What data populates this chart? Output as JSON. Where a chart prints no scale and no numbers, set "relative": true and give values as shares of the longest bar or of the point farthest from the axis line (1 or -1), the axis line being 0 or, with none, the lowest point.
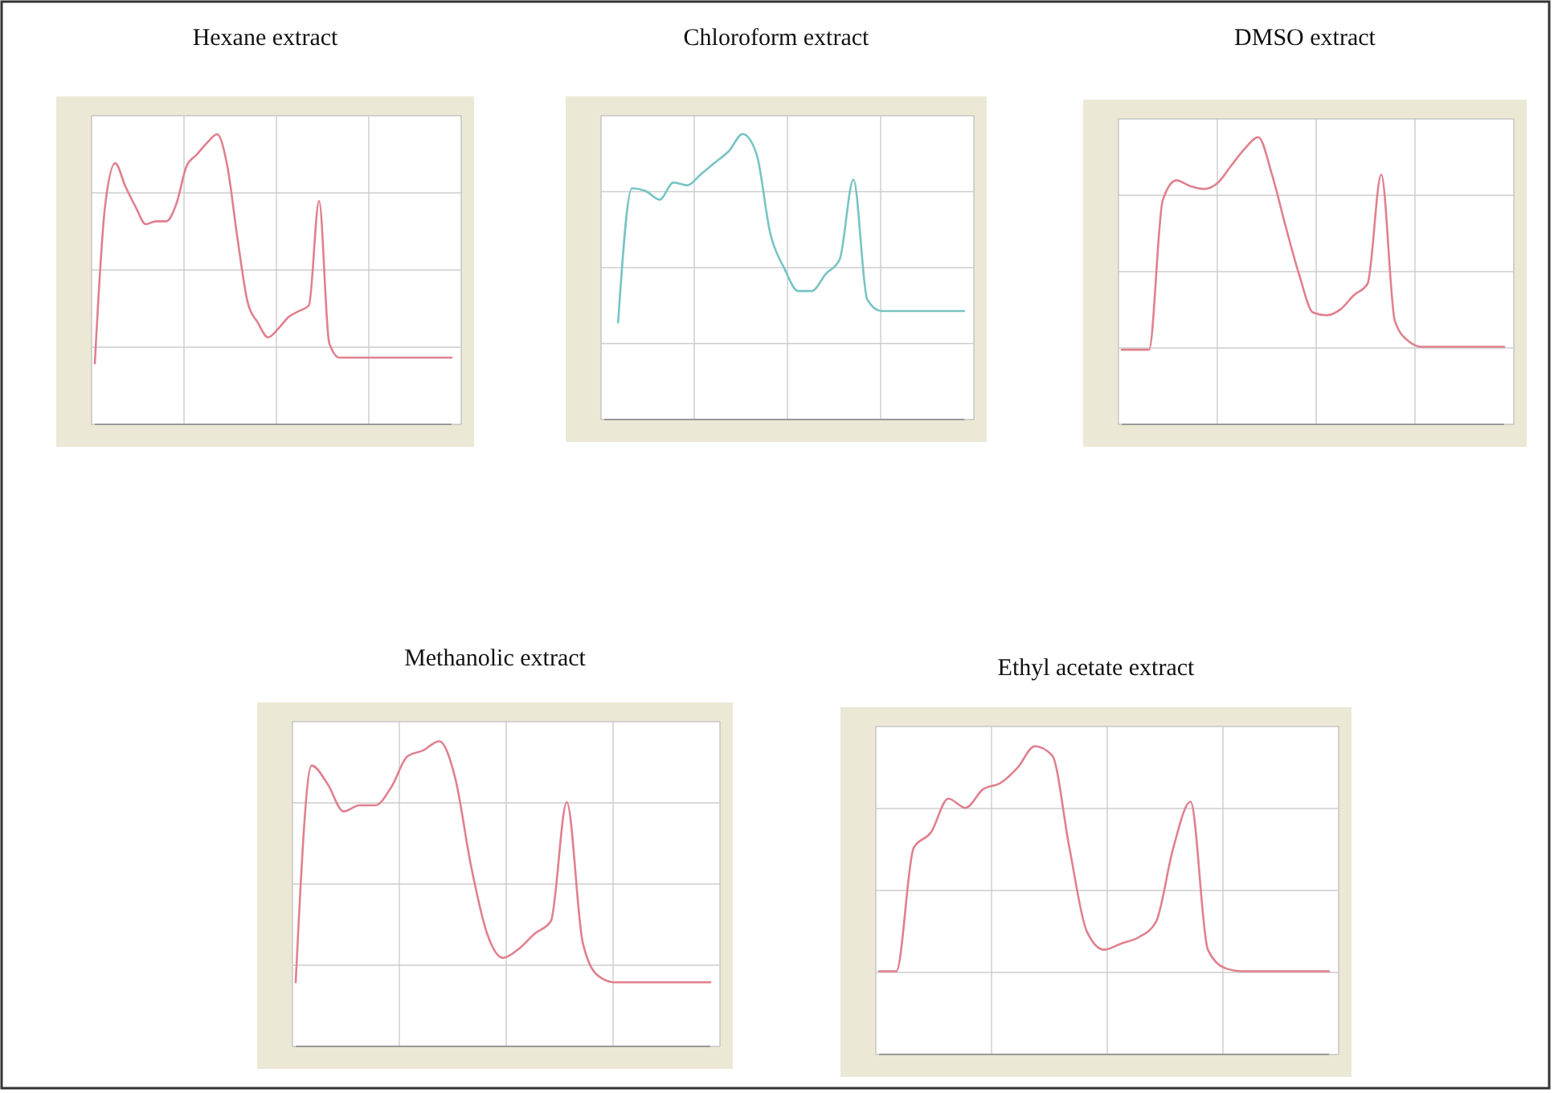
{
  "chart_data": [
    {
      "type": "line",
      "title": "Hexane extract",
      "relative": true,
      "grid": true,
      "categories": [
        null,
        null,
        null,
        null,
        null,
        null,
        null,
        null,
        null,
        null,
        null,
        null,
        null,
        null,
        null,
        null,
        null,
        null,
        null,
        null,
        null,
        null,
        null,
        null,
        null,
        null,
        null,
        null,
        null,
        null,
        null,
        null,
        null,
        null,
        null,
        null
      ],
      "series": [
        {
          "color": "#e0808e",
          "values": [
            0.21,
            0.75,
            0.9,
            0.82,
            0.75,
            0.69,
            0.7,
            0.7,
            0.76,
            0.89,
            0.93,
            0.97,
            1.0,
            0.89,
            0.64,
            0.42,
            0.35,
            0.3,
            0.33,
            0.37,
            0.39,
            0.41,
            0.77,
            0.28,
            0.23,
            0.23,
            0.23,
            0.23,
            0.23,
            0.23,
            0.23,
            0.23,
            0.23,
            0.23,
            0.23,
            0.23
          ]
        }
      ]
    },
    {
      "type": "line",
      "title": "Chloroform extract",
      "relative": true,
      "grid": true,
      "categories": [
        null,
        null,
        null,
        null,
        null,
        null,
        null,
        null,
        null,
        null,
        null,
        null,
        null,
        null,
        null,
        null,
        null,
        null,
        null,
        null,
        null,
        null,
        null,
        null,
        null,
        null,
        null
      ],
      "series": [
        {
          "color": "#78c4c4",
          "values": [
            null,
            0.34,
            0.81,
            0.8,
            0.77,
            0.83,
            0.82,
            0.86,
            0.9,
            0.94,
            1.0,
            0.93,
            0.65,
            0.53,
            0.45,
            0.45,
            0.51,
            0.56,
            0.84,
            0.42,
            0.38,
            0.38,
            0.38,
            0.38,
            0.38,
            0.38,
            0.38
          ]
        }
      ]
    },
    {
      "type": "line",
      "title": "DMSO extract",
      "relative": true,
      "grid": true,
      "categories": [
        null,
        null,
        null,
        null,
        null,
        null,
        null,
        null,
        null,
        null,
        null,
        null,
        null,
        null,
        null,
        null,
        null,
        null,
        null,
        null,
        null,
        null,
        null,
        null,
        null,
        null,
        null,
        null,
        null
      ],
      "series": [
        {
          "color": "#e0808e",
          "values": [
            0.26,
            0.26,
            0.26,
            0.78,
            0.85,
            0.83,
            0.82,
            0.84,
            0.9,
            0.96,
            1.0,
            0.87,
            0.69,
            0.52,
            0.39,
            0.38,
            0.4,
            0.45,
            0.49,
            0.87,
            0.36,
            0.29,
            0.27,
            0.27,
            0.27,
            0.27,
            0.27,
            0.27,
            0.27
          ]
        }
      ]
    },
    {
      "type": "line",
      "title": "Methanolic extract",
      "relative": true,
      "grid": true,
      "categories": [
        null,
        null,
        null,
        null,
        null,
        null,
        null,
        null,
        null,
        null,
        null,
        null,
        null,
        null,
        null,
        null,
        null,
        null,
        null,
        null,
        null,
        null,
        null,
        null,
        null,
        null,
        null
      ],
      "series": [
        {
          "color": "#e0808e",
          "values": [
            0.21,
            0.92,
            0.86,
            0.77,
            0.79,
            0.79,
            0.85,
            0.95,
            0.97,
            1.0,
            0.88,
            0.59,
            0.37,
            0.29,
            0.32,
            0.37,
            0.41,
            0.8,
            0.34,
            0.23,
            0.21,
            0.21,
            0.21,
            0.21,
            0.21,
            0.21,
            0.21
          ]
        }
      ]
    },
    {
      "type": "line",
      "title": "Ethyl acetate extract",
      "relative": true,
      "grid": true,
      "categories": [
        null,
        null,
        null,
        null,
        null,
        null,
        null,
        null,
        null,
        null,
        null,
        null,
        null,
        null,
        null,
        null,
        null,
        null,
        null,
        null,
        null,
        null,
        null,
        null,
        null,
        null,
        null
      ],
      "series": [
        {
          "color": "#e0808e",
          "values": [
            0.27,
            0.27,
            0.67,
            0.72,
            0.83,
            0.8,
            0.86,
            0.88,
            0.93,
            1.0,
            0.97,
            0.67,
            0.4,
            0.34,
            0.36,
            0.38,
            0.43,
            0.67,
            0.82,
            0.34,
            0.28,
            0.27,
            0.27,
            0.27,
            0.27,
            0.27,
            0.27
          ]
        }
      ]
    }
  ]
}
